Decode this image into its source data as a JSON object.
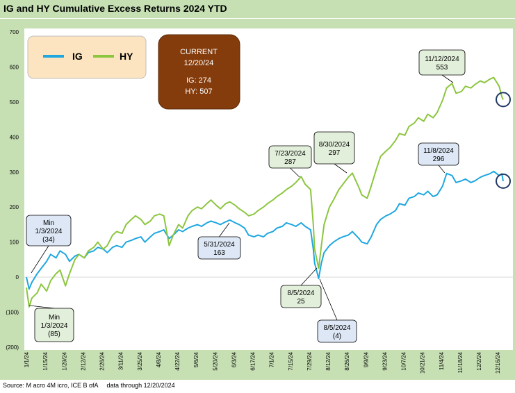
{
  "chart_data": {
    "type": "line",
    "title": "IG and HY Cumulative Excess Returns 2024 YTD",
    "ylim": [
      -200,
      700
    ],
    "yticks": [
      -200,
      -100,
      0,
      100,
      200,
      300,
      400,
      500,
      600,
      700
    ],
    "ytick_labels": [
      "(200)",
      "(100)",
      "0",
      "100",
      "200",
      "300",
      "400",
      "500",
      "600",
      "700"
    ],
    "xticks": [
      "1/1/24",
      "1/15/24",
      "1/29/24",
      "2/12/24",
      "2/26/24",
      "3/11/24",
      "3/25/24",
      "4/8/24",
      "4/22/24",
      "5/6/24",
      "5/20/24",
      "6/3/24",
      "6/17/24",
      "7/1/24",
      "7/15/24",
      "7/29/24",
      "8/12/24",
      "8/26/24",
      "9/9/24",
      "9/23/24",
      "10/7/24",
      "10/21/24",
      "11/4/24",
      "11/18/24",
      "12/2/24",
      "12/16/24"
    ],
    "grid": false,
    "legend_position": "top-left",
    "colors": {
      "IG": "#1fa7e0",
      "HY": "#8cc63f"
    },
    "series": [
      {
        "name": "IG",
        "points": [
          [
            "2024-01-01",
            0
          ],
          [
            "2024-01-03",
            -34
          ],
          [
            "2024-01-05",
            -15
          ],
          [
            "2024-01-09",
            10
          ],
          [
            "2024-01-12",
            25
          ],
          [
            "2024-01-16",
            45
          ],
          [
            "2024-01-19",
            65
          ],
          [
            "2024-01-23",
            55
          ],
          [
            "2024-01-26",
            75
          ],
          [
            "2024-01-30",
            65
          ],
          [
            "2024-02-02",
            45
          ],
          [
            "2024-02-06",
            60
          ],
          [
            "2024-02-09",
            65
          ],
          [
            "2024-02-13",
            55
          ],
          [
            "2024-02-16",
            70
          ],
          [
            "2024-02-20",
            75
          ],
          [
            "2024-02-23",
            85
          ],
          [
            "2024-02-27",
            80
          ],
          [
            "2024-03-01",
            70
          ],
          [
            "2024-03-05",
            85
          ],
          [
            "2024-03-08",
            90
          ],
          [
            "2024-03-12",
            85
          ],
          [
            "2024-03-15",
            100
          ],
          [
            "2024-03-19",
            105
          ],
          [
            "2024-03-22",
            110
          ],
          [
            "2024-03-26",
            115
          ],
          [
            "2024-03-29",
            100
          ],
          [
            "2024-04-02",
            115
          ],
          [
            "2024-04-05",
            125
          ],
          [
            "2024-04-09",
            130
          ],
          [
            "2024-04-12",
            135
          ],
          [
            "2024-04-16",
            110
          ],
          [
            "2024-04-19",
            120
          ],
          [
            "2024-04-23",
            135
          ],
          [
            "2024-04-26",
            130
          ],
          [
            "2024-04-30",
            140
          ],
          [
            "2024-05-03",
            145
          ],
          [
            "2024-05-07",
            150
          ],
          [
            "2024-05-10",
            145
          ],
          [
            "2024-05-14",
            155
          ],
          [
            "2024-05-17",
            160
          ],
          [
            "2024-05-21",
            155
          ],
          [
            "2024-05-24",
            150
          ],
          [
            "2024-05-28",
            158
          ],
          [
            "2024-05-31",
            163
          ],
          [
            "2024-06-04",
            155
          ],
          [
            "2024-06-07",
            150
          ],
          [
            "2024-06-11",
            140
          ],
          [
            "2024-06-14",
            120
          ],
          [
            "2024-06-18",
            115
          ],
          [
            "2024-06-21",
            120
          ],
          [
            "2024-06-25",
            115
          ],
          [
            "2024-06-28",
            125
          ],
          [
            "2024-07-02",
            130
          ],
          [
            "2024-07-05",
            140
          ],
          [
            "2024-07-09",
            145
          ],
          [
            "2024-07-12",
            155
          ],
          [
            "2024-07-16",
            150
          ],
          [
            "2024-07-19",
            145
          ],
          [
            "2024-07-23",
            155
          ],
          [
            "2024-07-26",
            145
          ],
          [
            "2024-07-30",
            135
          ],
          [
            "2024-08-01",
            80
          ],
          [
            "2024-08-02",
            40
          ],
          [
            "2024-08-05",
            -4
          ],
          [
            "2024-08-07",
            40
          ],
          [
            "2024-08-09",
            70
          ],
          [
            "2024-08-13",
            90
          ],
          [
            "2024-08-16",
            100
          ],
          [
            "2024-08-20",
            110
          ],
          [
            "2024-08-23",
            115
          ],
          [
            "2024-08-27",
            120
          ],
          [
            "2024-08-30",
            130
          ],
          [
            "2024-09-04",
            110
          ],
          [
            "2024-09-06",
            100
          ],
          [
            "2024-09-10",
            95
          ],
          [
            "2024-09-13",
            115
          ],
          [
            "2024-09-17",
            150
          ],
          [
            "2024-09-20",
            165
          ],
          [
            "2024-09-24",
            175
          ],
          [
            "2024-09-27",
            180
          ],
          [
            "2024-10-01",
            190
          ],
          [
            "2024-10-04",
            210
          ],
          [
            "2024-10-08",
            205
          ],
          [
            "2024-10-11",
            225
          ],
          [
            "2024-10-15",
            230
          ],
          [
            "2024-10-18",
            240
          ],
          [
            "2024-10-22",
            235
          ],
          [
            "2024-10-25",
            245
          ],
          [
            "2024-10-29",
            230
          ],
          [
            "2024-11-01",
            235
          ],
          [
            "2024-11-05",
            260
          ],
          [
            "2024-11-08",
            296
          ],
          [
            "2024-11-12",
            290
          ],
          [
            "2024-11-15",
            270
          ],
          [
            "2024-11-19",
            275
          ],
          [
            "2024-11-22",
            280
          ],
          [
            "2024-11-26",
            270
          ],
          [
            "2024-11-29",
            275
          ],
          [
            "2024-12-03",
            285
          ],
          [
            "2024-12-06",
            290
          ],
          [
            "2024-12-10",
            295
          ],
          [
            "2024-12-13",
            302
          ],
          [
            "2024-12-17",
            290
          ],
          [
            "2024-12-19",
            295
          ],
          [
            "2024-12-20",
            274
          ]
        ]
      },
      {
        "name": "HY",
        "points": [
          [
            "2024-01-01",
            -30
          ],
          [
            "2024-01-03",
            -85
          ],
          [
            "2024-01-05",
            -60
          ],
          [
            "2024-01-09",
            -45
          ],
          [
            "2024-01-12",
            -20
          ],
          [
            "2024-01-16",
            -40
          ],
          [
            "2024-01-19",
            -10
          ],
          [
            "2024-01-23",
            10
          ],
          [
            "2024-01-26",
            20
          ],
          [
            "2024-01-30",
            -25
          ],
          [
            "2024-02-02",
            10
          ],
          [
            "2024-02-06",
            50
          ],
          [
            "2024-02-09",
            65
          ],
          [
            "2024-02-13",
            55
          ],
          [
            "2024-02-16",
            75
          ],
          [
            "2024-02-20",
            85
          ],
          [
            "2024-02-23",
            100
          ],
          [
            "2024-02-27",
            80
          ],
          [
            "2024-03-01",
            90
          ],
          [
            "2024-03-05",
            120
          ],
          [
            "2024-03-08",
            130
          ],
          [
            "2024-03-12",
            125
          ],
          [
            "2024-03-15",
            150
          ],
          [
            "2024-03-19",
            165
          ],
          [
            "2024-03-22",
            175
          ],
          [
            "2024-03-26",
            165
          ],
          [
            "2024-03-29",
            150
          ],
          [
            "2024-04-02",
            160
          ],
          [
            "2024-04-05",
            175
          ],
          [
            "2024-04-09",
            180
          ],
          [
            "2024-04-12",
            175
          ],
          [
            "2024-04-16",
            90
          ],
          [
            "2024-04-19",
            120
          ],
          [
            "2024-04-23",
            150
          ],
          [
            "2024-04-26",
            140
          ],
          [
            "2024-04-30",
            175
          ],
          [
            "2024-05-03",
            190
          ],
          [
            "2024-05-07",
            200
          ],
          [
            "2024-05-10",
            195
          ],
          [
            "2024-05-14",
            210
          ],
          [
            "2024-05-17",
            220
          ],
          [
            "2024-05-21",
            205
          ],
          [
            "2024-05-24",
            195
          ],
          [
            "2024-05-28",
            210
          ],
          [
            "2024-05-31",
            215
          ],
          [
            "2024-06-04",
            205
          ],
          [
            "2024-06-07",
            195
          ],
          [
            "2024-06-11",
            185
          ],
          [
            "2024-06-14",
            175
          ],
          [
            "2024-06-18",
            180
          ],
          [
            "2024-06-21",
            190
          ],
          [
            "2024-06-25",
            200
          ],
          [
            "2024-06-28",
            210
          ],
          [
            "2024-07-02",
            220
          ],
          [
            "2024-07-05",
            230
          ],
          [
            "2024-07-09",
            240
          ],
          [
            "2024-07-12",
            250
          ],
          [
            "2024-07-16",
            260
          ],
          [
            "2024-07-19",
            270
          ],
          [
            "2024-07-23",
            287
          ],
          [
            "2024-07-26",
            265
          ],
          [
            "2024-07-30",
            250
          ],
          [
            "2024-08-01",
            150
          ],
          [
            "2024-08-02",
            80
          ],
          [
            "2024-08-05",
            25
          ],
          [
            "2024-08-07",
            90
          ],
          [
            "2024-08-09",
            150
          ],
          [
            "2024-08-13",
            200
          ],
          [
            "2024-08-16",
            220
          ],
          [
            "2024-08-20",
            250
          ],
          [
            "2024-08-23",
            265
          ],
          [
            "2024-08-27",
            285
          ],
          [
            "2024-08-30",
            297
          ],
          [
            "2024-09-04",
            255
          ],
          [
            "2024-09-06",
            235
          ],
          [
            "2024-09-10",
            225
          ],
          [
            "2024-09-13",
            260
          ],
          [
            "2024-09-17",
            310
          ],
          [
            "2024-09-20",
            345
          ],
          [
            "2024-09-24",
            360
          ],
          [
            "2024-09-27",
            370
          ],
          [
            "2024-10-01",
            390
          ],
          [
            "2024-10-04",
            410
          ],
          [
            "2024-10-08",
            405
          ],
          [
            "2024-10-11",
            430
          ],
          [
            "2024-10-15",
            440
          ],
          [
            "2024-10-18",
            455
          ],
          [
            "2024-10-22",
            445
          ],
          [
            "2024-10-25",
            465
          ],
          [
            "2024-10-29",
            455
          ],
          [
            "2024-11-01",
            470
          ],
          [
            "2024-11-05",
            505
          ],
          [
            "2024-11-08",
            540
          ],
          [
            "2024-11-12",
            553
          ],
          [
            "2024-11-15",
            525
          ],
          [
            "2024-11-19",
            530
          ],
          [
            "2024-11-22",
            545
          ],
          [
            "2024-11-26",
            540
          ],
          [
            "2024-11-29",
            550
          ],
          [
            "2024-12-03",
            560
          ],
          [
            "2024-12-06",
            555
          ],
          [
            "2024-12-10",
            565
          ],
          [
            "2024-12-13",
            570
          ],
          [
            "2024-12-17",
            545
          ],
          [
            "2024-12-19",
            515
          ],
          [
            "2024-12-20",
            507
          ]
        ]
      }
    ],
    "current_box": {
      "line1": "CURRENT",
      "line2": "12/20/24",
      "line3": "IG: 274",
      "line4": "HY: 507",
      "fill": "#843c0c"
    },
    "annotations": [
      {
        "lines": [
          "Min",
          "1/3/2024",
          "(34)"
        ],
        "series": "IG",
        "date": "2024-01-03",
        "value": -34
      },
      {
        "lines": [
          "Min",
          "1/3/2024",
          "(85)"
        ],
        "series": "HY",
        "date": "2024-01-03",
        "value": -85
      },
      {
        "lines": [
          "5/31/2024",
          "163"
        ],
        "series": "IG",
        "date": "2024-05-31",
        "value": 163
      },
      {
        "lines": [
          "7/23/2024",
          "287"
        ],
        "series": "HY",
        "date": "2024-07-23",
        "value": 287
      },
      {
        "lines": [
          "8/30/2024",
          "297"
        ],
        "series": "HY",
        "date": "2024-08-30",
        "value": 297
      },
      {
        "lines": [
          "8/5/2024",
          "25"
        ],
        "series": "HY",
        "date": "2024-08-05",
        "value": 25
      },
      {
        "lines": [
          "8/5/2024",
          "(4)"
        ],
        "series": "IG",
        "date": "2024-08-05",
        "value": -4
      },
      {
        "lines": [
          "11/8/2024",
          "296"
        ],
        "series": "IG",
        "date": "2024-11-08",
        "value": 296
      },
      {
        "lines": [
          "11/12/2024",
          "553"
        ],
        "series": "HY",
        "date": "2024-11-12",
        "value": 553
      }
    ]
  },
  "source_text": "Source: M acro 4M icro, ICE B ofA     data through 12/20/2024"
}
